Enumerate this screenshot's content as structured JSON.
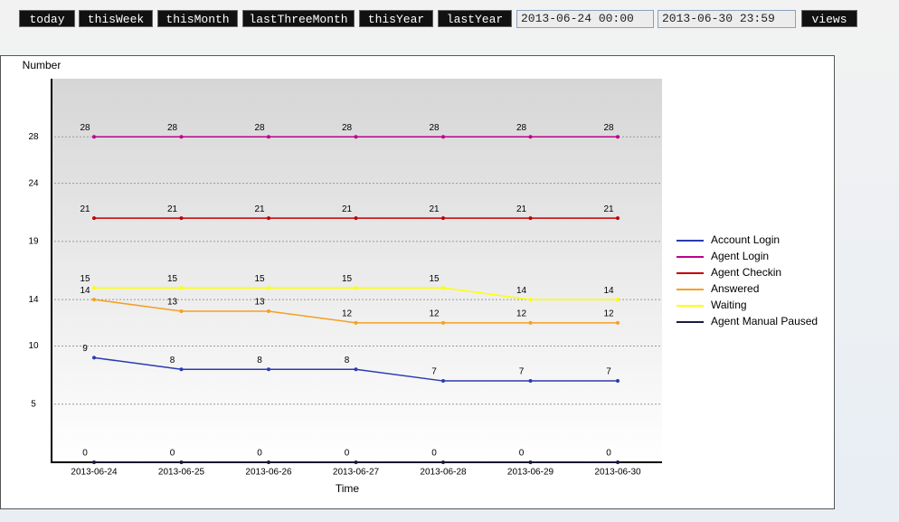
{
  "toolbar": {
    "buttons": [
      "today",
      "thisWeek",
      "thisMonth",
      "lastThreeMonth",
      "thisYear",
      "lastYear"
    ],
    "start": "2013-06-24 00:00",
    "end": "2013-06-30 23:59",
    "submit": "views"
  },
  "chart_data": {
    "type": "line",
    "y_label": "Number",
    "x_label": "Time",
    "categories": [
      "2013-06-24",
      "2013-06-25",
      "2013-06-26",
      "2013-06-27",
      "2013-06-28",
      "2013-06-29",
      "2013-06-30"
    ],
    "ylim": [
      0,
      33
    ],
    "yticks": [
      5,
      10,
      14,
      19,
      24,
      28
    ],
    "grid": true,
    "series": [
      {
        "name": "Account Login",
        "color": "#2a3cb0",
        "values": [
          9,
          8,
          8,
          8,
          7,
          7,
          7
        ]
      },
      {
        "name": "Agent Login",
        "color": "#c0008c",
        "values": [
          28,
          28,
          28,
          28,
          28,
          28,
          28
        ]
      },
      {
        "name": "Agent Checkin",
        "color": "#c00000",
        "values": [
          21,
          21,
          21,
          21,
          21,
          21,
          21
        ]
      },
      {
        "name": "Answered",
        "color": "#f5a020",
        "values": [
          14,
          13,
          13,
          12,
          12,
          12,
          12
        ]
      },
      {
        "name": "Waiting",
        "color": "#ffff00",
        "values": [
          15,
          15,
          15,
          15,
          15,
          14,
          14
        ]
      },
      {
        "name": "Agent Manual Paused",
        "color": "#1a1a40",
        "values": [
          0,
          0,
          0,
          0,
          0,
          0,
          0
        ]
      }
    ]
  }
}
